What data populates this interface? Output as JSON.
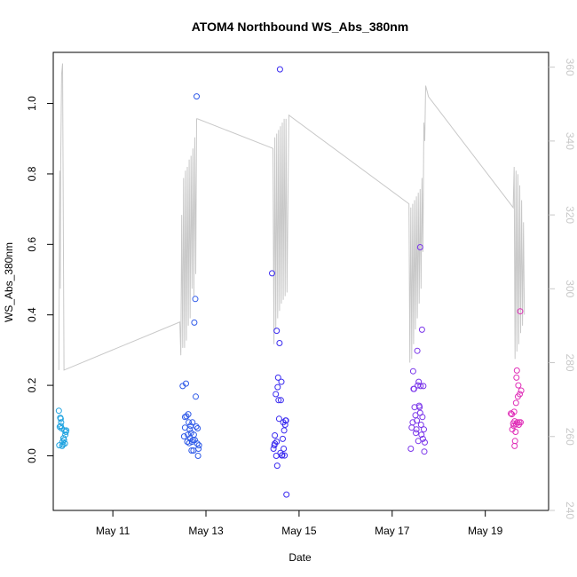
{
  "chart_data": {
    "type": "scatter",
    "title": "ATOM4 Northbound WS_Abs_380nm",
    "xlabel": "Date",
    "ylabel": "WS_Abs_380nm",
    "x_ticks": [
      {
        "label": "May 11",
        "day": 11
      },
      {
        "label": "May 13",
        "day": 13
      },
      {
        "label": "May 15",
        "day": 15
      },
      {
        "label": "May 17",
        "day": 17
      },
      {
        "label": "May 19",
        "day": 19
      }
    ],
    "xlim": [
      9.72,
      20.36
    ],
    "ylim": [
      -0.155,
      1.145
    ],
    "y_ticks": [
      0.0,
      0.2,
      0.4,
      0.6,
      0.8,
      1.0
    ],
    "y_tick_labels": [
      "0.0",
      "0.2",
      "0.4",
      "0.6",
      "0.8",
      "1.0"
    ],
    "y2lim": [
      240,
      364
    ],
    "y2_ticks": [
      240,
      260,
      280,
      300,
      320,
      340,
      360
    ],
    "y2_tick_labels": [
      "240",
      "260",
      "280",
      "300",
      "320",
      "340",
      "360"
    ],
    "grid": false,
    "colors": {
      "points": [
        "#1fa3e0",
        "#2f5ae8",
        "#3b2cf0",
        "#7a35ea",
        "#b030d8",
        "#e02fb8"
      ],
      "line": "#c8c8c8",
      "axis": "#000000",
      "right_axis": "#c8c8c8"
    },
    "scatter_series": [
      {
        "color": "#1fa3e0",
        "points": [
          [
            9.84,
            0.128
          ],
          [
            9.85,
            0.03
          ],
          [
            9.86,
            0.082
          ],
          [
            9.87,
            0.108
          ],
          [
            9.88,
            0.085
          ],
          [
            9.89,
            0.095
          ],
          [
            9.9,
            0.078
          ],
          [
            9.91,
            0.028
          ],
          [
            9.92,
            0.04
          ],
          [
            9.93,
            0.032
          ],
          [
            9.94,
            0.05
          ],
          [
            9.95,
            0.045
          ],
          [
            9.96,
            0.072
          ],
          [
            9.97,
            0.035
          ],
          [
            9.98,
            0.06
          ],
          [
            9.99,
            0.068
          ],
          [
            10.0,
            0.072
          ],
          [
            9.88,
            0.105
          ]
        ]
      },
      {
        "color": "#2f5ae8",
        "points": [
          [
            12.5,
            0.198
          ],
          [
            12.53,
            0.055
          ],
          [
            12.55,
            0.11
          ],
          [
            12.57,
            0.205
          ],
          [
            12.58,
            0.112
          ],
          [
            12.6,
            0.04
          ],
          [
            12.62,
            0.118
          ],
          [
            12.63,
            0.095
          ],
          [
            12.64,
            0.036
          ],
          [
            12.65,
            0.075
          ],
          [
            12.66,
            0.05
          ],
          [
            12.67,
            0.085
          ],
          [
            12.68,
            0.065
          ],
          [
            12.69,
            0.015
          ],
          [
            12.7,
            0.04
          ],
          [
            12.71,
            0.095
          ],
          [
            12.72,
            0.045
          ],
          [
            12.73,
            0.015
          ],
          [
            12.74,
            0.06
          ],
          [
            12.75,
            0.378
          ],
          [
            12.76,
            0.045
          ],
          [
            12.77,
            0.445
          ],
          [
            12.78,
            0.168
          ],
          [
            12.79,
            0.083
          ],
          [
            12.8,
            1.02
          ],
          [
            12.81,
            0.035
          ],
          [
            12.82,
            0.078
          ],
          [
            12.83,
            0.0
          ],
          [
            12.84,
            0.02
          ],
          [
            12.85,
            0.03
          ],
          [
            12.55,
            0.08
          ],
          [
            12.61,
            0.06
          ]
        ]
      },
      {
        "color": "#3b2cf0",
        "points": [
          [
            14.42,
            0.518
          ],
          [
            14.45,
            0.02
          ],
          [
            14.47,
            0.03
          ],
          [
            14.48,
            0.035
          ],
          [
            14.5,
            0.175
          ],
          [
            14.51,
            0.0
          ],
          [
            14.52,
            0.355
          ],
          [
            14.53,
            -0.028
          ],
          [
            14.54,
            0.195
          ],
          [
            14.55,
            0.222
          ],
          [
            14.56,
            0.158
          ],
          [
            14.57,
            0.105
          ],
          [
            14.58,
            0.32
          ],
          [
            14.59,
            1.097
          ],
          [
            14.6,
            0.008
          ],
          [
            14.61,
            0.158
          ],
          [
            14.62,
            0.21
          ],
          [
            14.63,
            0.001
          ],
          [
            14.64,
            0.002
          ],
          [
            14.65,
            0.048
          ],
          [
            14.66,
            0.095
          ],
          [
            14.67,
            0.02
          ],
          [
            14.68,
            0.072
          ],
          [
            14.69,
            0.001
          ],
          [
            14.7,
            0.088
          ],
          [
            14.71,
            0.1
          ],
          [
            14.72,
            0.1
          ],
          [
            14.73,
            -0.11
          ],
          [
            14.48,
            0.058
          ],
          [
            14.52,
            0.04
          ]
        ]
      },
      {
        "color": "#7a35ea",
        "points": [
          [
            17.4,
            0.02
          ],
          [
            17.42,
            0.08
          ],
          [
            17.44,
            0.095
          ],
          [
            17.45,
            0.24
          ],
          [
            17.46,
            0.19
          ],
          [
            17.47,
            0.19
          ],
          [
            17.48,
            0.138
          ],
          [
            17.5,
            0.115
          ],
          [
            17.51,
            0.065
          ],
          [
            17.52,
            0.075
          ],
          [
            17.53,
            0.1
          ],
          [
            17.54,
            0.298
          ],
          [
            17.55,
            0.2
          ],
          [
            17.56,
            0.042
          ],
          [
            17.57,
            0.21
          ],
          [
            17.58,
            0.142
          ],
          [
            17.59,
            0.138
          ],
          [
            17.6,
            0.122
          ],
          [
            17.61,
            0.198
          ],
          [
            17.62,
            0.088
          ],
          [
            17.63,
            0.06
          ],
          [
            17.64,
            0.358
          ],
          [
            17.65,
            0.11
          ],
          [
            17.66,
            0.048
          ],
          [
            17.67,
            0.198
          ],
          [
            17.68,
            0.075
          ],
          [
            17.69,
            0.012
          ],
          [
            17.7,
            0.038
          ],
          [
            17.6,
            0.592
          ]
        ]
      },
      {
        "color": "#e02fb8",
        "points": [
          [
            19.55,
            0.12
          ],
          [
            19.57,
            0.118
          ],
          [
            19.58,
            0.075
          ],
          [
            19.6,
            0.092
          ],
          [
            19.61,
            0.085
          ],
          [
            19.62,
            0.125
          ],
          [
            19.63,
            0.028
          ],
          [
            19.64,
            0.042
          ],
          [
            19.65,
            0.068
          ],
          [
            19.66,
            0.09
          ],
          [
            19.67,
            0.222
          ],
          [
            19.68,
            0.242
          ],
          [
            19.69,
            0.095
          ],
          [
            19.7,
            0.168
          ],
          [
            19.71,
            0.2
          ],
          [
            19.72,
            0.088
          ],
          [
            19.73,
            0.095
          ],
          [
            19.74,
            0.175
          ],
          [
            19.75,
            0.41
          ],
          [
            19.76,
            0.095
          ],
          [
            19.77,
            0.185
          ],
          [
            19.63,
            0.098
          ],
          [
            19.66,
            0.15
          ]
        ]
      }
    ],
    "line_series": {
      "color": "#c8c8c8",
      "axis": "right",
      "points": [
        [
          9.84,
          278
        ],
        [
          9.86,
          332
        ],
        [
          9.87,
          300
        ],
        [
          9.88,
          334
        ],
        [
          9.9,
          358
        ],
        [
          9.92,
          361
        ],
        [
          9.95,
          278
        ],
        [
          12.44,
          291
        ],
        [
          12.46,
          282
        ],
        [
          12.48,
          320
        ],
        [
          12.5,
          284
        ],
        [
          12.52,
          330
        ],
        [
          12.54,
          284
        ],
        [
          12.56,
          332
        ],
        [
          12.58,
          286
        ],
        [
          12.6,
          333
        ],
        [
          12.62,
          290
        ],
        [
          12.64,
          335
        ],
        [
          12.66,
          292
        ],
        [
          12.68,
          336
        ],
        [
          12.7,
          300
        ],
        [
          12.72,
          338
        ],
        [
          12.74,
          298
        ],
        [
          12.76,
          341
        ],
        [
          12.78,
          304
        ],
        [
          12.8,
          346
        ],
        [
          12.82,
          346
        ],
        [
          14.44,
          338
        ],
        [
          14.46,
          285
        ],
        [
          14.48,
          341
        ],
        [
          14.5,
          289
        ],
        [
          14.52,
          342
        ],
        [
          14.54,
          292
        ],
        [
          14.56,
          343
        ],
        [
          14.58,
          294
        ],
        [
          14.6,
          344
        ],
        [
          14.62,
          296
        ],
        [
          14.64,
          345
        ],
        [
          14.66,
          297
        ],
        [
          14.68,
          346
        ],
        [
          14.7,
          298
        ],
        [
          14.72,
          346
        ],
        [
          14.74,
          299
        ],
        [
          14.78,
          347
        ],
        [
          17.36,
          323
        ],
        [
          17.38,
          280
        ],
        [
          17.4,
          322
        ],
        [
          17.42,
          281
        ],
        [
          17.44,
          323
        ],
        [
          17.46,
          285
        ],
        [
          17.48,
          324
        ],
        [
          17.5,
          289
        ],
        [
          17.52,
          325
        ],
        [
          17.54,
          292
        ],
        [
          17.56,
          326
        ],
        [
          17.58,
          296
        ],
        [
          17.6,
          327
        ],
        [
          17.62,
          300
        ],
        [
          17.64,
          330
        ],
        [
          17.66,
          310
        ],
        [
          17.68,
          345
        ],
        [
          17.7,
          340
        ],
        [
          17.72,
          355
        ],
        [
          17.74,
          354
        ],
        [
          17.78,
          352
        ],
        [
          19.6,
          322
        ],
        [
          19.62,
          333
        ],
        [
          19.64,
          281
        ],
        [
          19.66,
          332
        ],
        [
          19.68,
          283
        ],
        [
          19.7,
          331
        ],
        [
          19.72,
          285
        ],
        [
          19.74,
          328
        ],
        [
          19.76,
          288
        ],
        [
          19.78,
          324
        ],
        [
          19.8,
          290
        ],
        [
          19.82,
          318
        ],
        [
          19.84,
          293
        ]
      ]
    }
  }
}
